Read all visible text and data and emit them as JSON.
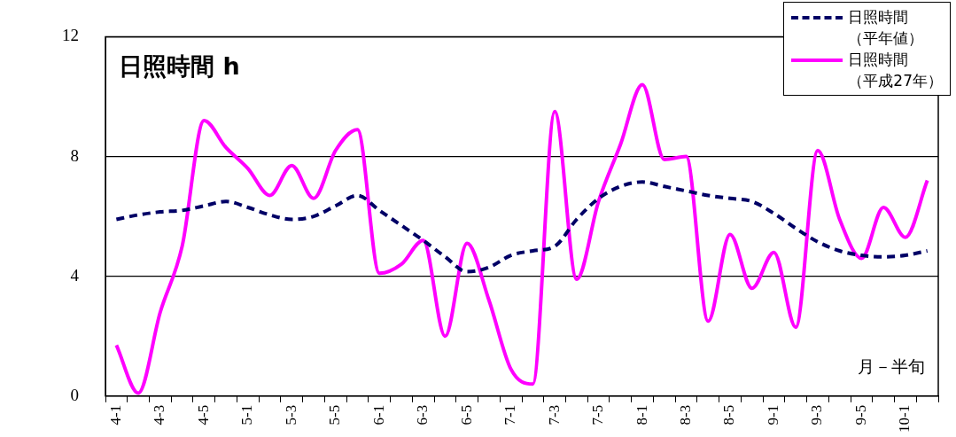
{
  "chart_data": {
    "type": "line",
    "title": "日照時間 h",
    "annotations": [
      "月－半旬"
    ],
    "categories": [
      "4-1",
      null,
      "4-3",
      null,
      "4-5",
      null,
      "5-1",
      null,
      "5-3",
      null,
      "5-5",
      null,
      "6-1",
      null,
      "6-3",
      null,
      "6-5",
      null,
      "7-1",
      null,
      "7-3",
      null,
      "7-5",
      null,
      "8-1",
      null,
      "8-3",
      null,
      "8-5",
      null,
      "9-1",
      null,
      "9-3",
      null,
      "9-5",
      null,
      "10-1",
      null
    ],
    "series": [
      {
        "name": "日照時間（平年値）",
        "color": "#000066",
        "line_style": "dashed",
        "values": [
          5.9,
          6.05,
          6.15,
          6.2,
          6.35,
          6.5,
          6.3,
          6.05,
          5.9,
          6.0,
          6.35,
          6.7,
          6.2,
          5.7,
          5.2,
          4.65,
          4.15,
          4.3,
          4.7,
          4.85,
          5.0,
          5.9,
          6.6,
          7.0,
          7.15,
          7.0,
          6.85,
          6.7,
          6.6,
          6.5,
          6.1,
          5.6,
          5.15,
          4.85,
          4.7,
          4.65,
          4.7,
          4.85
        ]
      },
      {
        "name": "日照時間（平成27年）",
        "color": "#ff00ff",
        "line_style": "solid",
        "values": [
          1.7,
          0.1,
          2.8,
          5.0,
          9.2,
          8.3,
          7.6,
          6.7,
          7.7,
          6.6,
          8.2,
          8.9,
          4.1,
          4.4,
          5.2,
          2.0,
          5.1,
          3.2,
          0.9,
          0.4,
          9.5,
          3.9,
          6.5,
          8.4,
          10.4,
          7.9,
          8.0,
          2.5,
          5.4,
          3.6,
          4.8,
          2.3,
          8.2,
          5.9,
          4.6,
          6.3,
          5.3,
          7.2
        ]
      }
    ],
    "ylim": [
      0,
      12
    ],
    "yticks": [
      0,
      4,
      8,
      12
    ],
    "grid": "y",
    "legend": "top right",
    "marker": "none"
  }
}
